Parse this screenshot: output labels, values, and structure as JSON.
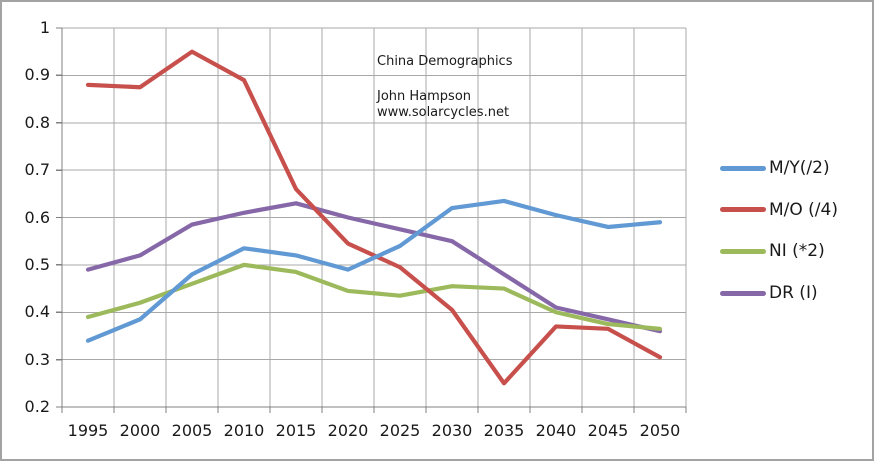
{
  "frame": {
    "background": "#ffffff",
    "border_color": "#a3a3a3"
  },
  "chart_data": {
    "type": "line",
    "title": "China Demographics",
    "annotations": [
      "John Hampson",
      "www.solarcycles.net"
    ],
    "categories": [
      "1995",
      "2000",
      "2005",
      "2010",
      "2015",
      "2020",
      "2025",
      "2030",
      "2035",
      "2040",
      "2045",
      "2050"
    ],
    "series": [
      {
        "name": "DR (I)",
        "color": "#8668a8",
        "values": [
          0.49,
          0.52,
          0.585,
          0.61,
          0.63,
          0.6,
          0.575,
          0.55,
          0.48,
          0.41,
          0.385,
          0.36
        ]
      },
      {
        "name": "NI (*2)",
        "color": "#9cba5b",
        "values": [
          0.39,
          0.42,
          0.46,
          0.5,
          0.485,
          0.445,
          0.435,
          0.455,
          0.45,
          0.4,
          0.375,
          0.365
        ]
      },
      {
        "name": "M/O (/4)",
        "color": "#c7504c",
        "values": [
          0.88,
          0.875,
          0.95,
          0.89,
          0.66,
          0.545,
          0.495,
          0.405,
          0.25,
          0.37,
          0.365,
          0.305
        ]
      },
      {
        "name": "M/Y(/2)",
        "color": "#6099d3",
        "values": [
          0.34,
          0.385,
          0.48,
          0.535,
          0.52,
          0.49,
          0.54,
          0.62,
          0.635,
          0.605,
          0.58,
          0.59
        ]
      }
    ],
    "legend_order": [
      "M/Y(/2)",
      "M/O (/4)",
      "NI (*2)",
      "DR (I)"
    ],
    "ylim": [
      0.2,
      1.0
    ],
    "ytick_step": 0.1,
    "ytick_labels": [
      "1",
      "0.9",
      "0.8",
      "0.7",
      "0.6",
      "0.5",
      "0.4",
      "0.3",
      "0.2"
    ],
    "xlabel": "",
    "ylabel": "",
    "grid": "on",
    "legend_position": "right",
    "grid_color": "#a8a8a8",
    "axis_color": "#808080"
  }
}
